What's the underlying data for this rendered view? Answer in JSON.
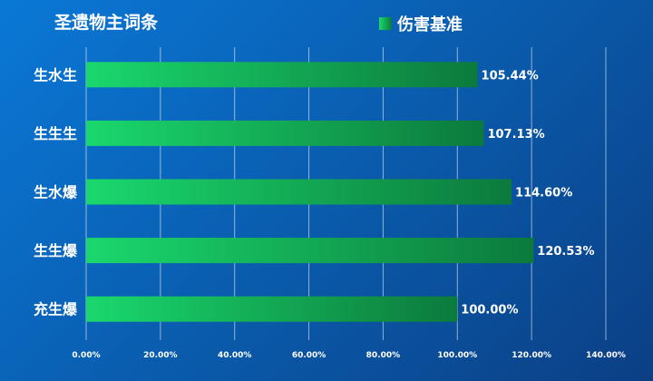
{
  "chart_data": {
    "type": "bar",
    "orientation": "horizontal",
    "title": "圣遗物主词条",
    "categories": [
      "生水生",
      "生生生",
      "生水爆",
      "生生爆",
      "充生爆"
    ],
    "series": [
      {
        "name": "伤害基准",
        "values": [
          105.44,
          107.13,
          114.6,
          120.53,
          100.0
        ]
      }
    ],
    "value_labels": [
      "105.44%",
      "107.13%",
      "114.60%",
      "120.53%",
      "100.00%"
    ],
    "xlim": [
      0,
      140
    ],
    "x_ticks": [
      "0.00%",
      "20.00%",
      "40.00%",
      "60.00%",
      "80.00%",
      "100.00%",
      "120.00%",
      "140.00%"
    ],
    "grid": true,
    "legend_position": "top-right",
    "colors": {
      "bar_start": "#1ad86d",
      "bar_end": "#0c7a3c",
      "background": "#0a5fb2",
      "text": "#ffffff"
    }
  }
}
